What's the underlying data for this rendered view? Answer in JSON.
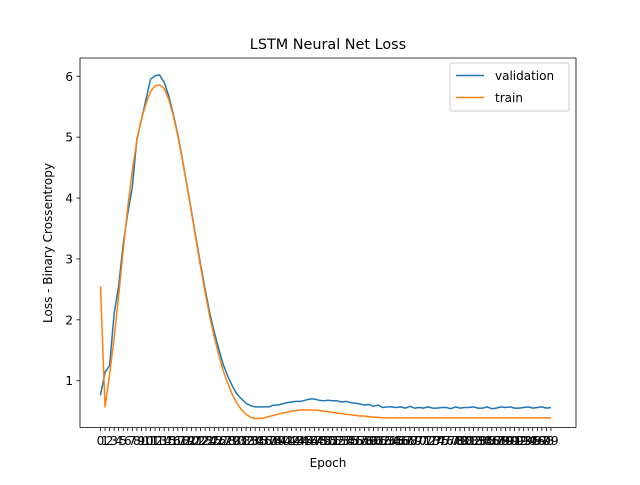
{
  "chart_data": {
    "type": "line",
    "title": "LSTM Neural Net Loss",
    "xlabel": "Epoch",
    "ylabel": "Loss - Binary Crossentropy",
    "ylim": [
      0.23,
      6.3
    ],
    "xlim": [
      -4.5,
      104.5
    ],
    "yticks": [
      1,
      2,
      3,
      4,
      5,
      6
    ],
    "x_tick_labels_visible": [
      "0",
      "1",
      "2",
      "3",
      "4",
      "5",
      "6",
      "7",
      "8",
      "9",
      "10",
      "11",
      "12",
      "13",
      "14",
      "15",
      "16",
      "17",
      "18",
      "19",
      "20",
      "21",
      "22",
      "23",
      "24",
      "25",
      "26",
      "27",
      "28",
      "29",
      "30",
      "31",
      "32",
      "33",
      "34",
      "35",
      "36",
      "37",
      "38",
      "39",
      "40",
      "41",
      "42",
      "43",
      "44",
      "45",
      "46",
      "47",
      "48",
      "49",
      "50",
      "51",
      "52",
      "53",
      "54",
      "55",
      "56",
      "57",
      "58",
      "59",
      "60",
      "61",
      "62",
      "63",
      "64",
      "65",
      "66",
      "67",
      "68",
      "69",
      "70",
      "71",
      "72",
      "73",
      "74",
      "75",
      "76",
      "77",
      "78",
      "79",
      "80",
      "81",
      "82",
      "83",
      "84",
      "85",
      "86",
      "87",
      "88",
      "89",
      "90",
      "91",
      "92",
      "93",
      "94",
      "95",
      "96",
      "97",
      "98",
      "99"
    ],
    "grid": false,
    "legend_position": "top-right",
    "series": [
      {
        "name": "validation",
        "color": "#1f77b4",
        "x": [
          0,
          1,
          2,
          3,
          4,
          5,
          6,
          7,
          8,
          9,
          10,
          11,
          12,
          13,
          14,
          15,
          16,
          17,
          18,
          19,
          20,
          21,
          22,
          23,
          24,
          25,
          26,
          27,
          28,
          29,
          30,
          31,
          32,
          33,
          34,
          35,
          36,
          37,
          38,
          39,
          40,
          41,
          42,
          43,
          44,
          45,
          46,
          47,
          48,
          49,
          50,
          51,
          52,
          53,
          54,
          55,
          56,
          57,
          58,
          59,
          60,
          61,
          62,
          63,
          64,
          65,
          66,
          67,
          68,
          69,
          70,
          71,
          72,
          73,
          74,
          75,
          76,
          77,
          78,
          79,
          80,
          81,
          82,
          83,
          84,
          85,
          86,
          87,
          88,
          89,
          90,
          91,
          92,
          93,
          94,
          95,
          96,
          97,
          98,
          99
        ],
        "values": [
          0.76,
          1.14,
          1.25,
          2.1,
          2.56,
          3.25,
          3.75,
          4.18,
          4.97,
          5.28,
          5.62,
          5.95,
          6.01,
          6.02,
          5.9,
          5.68,
          5.38,
          5.04,
          4.64,
          4.21,
          3.78,
          3.34,
          2.91,
          2.5,
          2.12,
          1.8,
          1.52,
          1.26,
          1.07,
          0.91,
          0.78,
          0.7,
          0.63,
          0.59,
          0.57,
          0.57,
          0.57,
          0.57,
          0.6,
          0.6,
          0.62,
          0.64,
          0.65,
          0.66,
          0.66,
          0.68,
          0.7,
          0.7,
          0.68,
          0.67,
          0.68,
          0.67,
          0.67,
          0.65,
          0.66,
          0.64,
          0.63,
          0.62,
          0.6,
          0.61,
          0.58,
          0.6,
          0.56,
          0.57,
          0.57,
          0.56,
          0.57,
          0.55,
          0.58,
          0.55,
          0.56,
          0.55,
          0.57,
          0.55,
          0.55,
          0.56,
          0.56,
          0.54,
          0.57,
          0.55,
          0.56,
          0.56,
          0.57,
          0.55,
          0.55,
          0.57,
          0.54,
          0.55,
          0.57,
          0.56,
          0.57,
          0.55,
          0.55,
          0.56,
          0.57,
          0.55,
          0.56,
          0.57,
          0.55,
          0.56
        ]
      },
      {
        "name": "train",
        "color": "#ff7f0e",
        "x": [
          0,
          1,
          2,
          3,
          4,
          5,
          6,
          7,
          8,
          9,
          10,
          11,
          12,
          13,
          14,
          15,
          16,
          17,
          18,
          19,
          20,
          21,
          22,
          23,
          24,
          25,
          26,
          27,
          28,
          29,
          30,
          31,
          32,
          33,
          34,
          35,
          36,
          37,
          38,
          39,
          40,
          41,
          42,
          43,
          44,
          45,
          46,
          47,
          48,
          49,
          50,
          51,
          52,
          53,
          54,
          55,
          56,
          57,
          58,
          59,
          60,
          61,
          62,
          63,
          64,
          65,
          66,
          67,
          68,
          69,
          70,
          71,
          72,
          73,
          74,
          75,
          76,
          77,
          78,
          79,
          80,
          81,
          82,
          83,
          84,
          85,
          86,
          87,
          88,
          89,
          90,
          91,
          92,
          93,
          94,
          95,
          96,
          97,
          98,
          99
        ],
        "values": [
          2.55,
          0.57,
          1.1,
          1.7,
          2.4,
          3.15,
          3.85,
          4.45,
          4.95,
          5.3,
          5.55,
          5.75,
          5.84,
          5.86,
          5.8,
          5.62,
          5.35,
          5.02,
          4.62,
          4.2,
          3.76,
          3.31,
          2.87,
          2.45,
          2.06,
          1.72,
          1.42,
          1.16,
          0.95,
          0.77,
          0.63,
          0.52,
          0.45,
          0.4,
          0.38,
          0.38,
          0.39,
          0.41,
          0.43,
          0.45,
          0.47,
          0.48,
          0.5,
          0.51,
          0.52,
          0.52,
          0.52,
          0.52,
          0.51,
          0.5,
          0.49,
          0.48,
          0.47,
          0.46,
          0.45,
          0.44,
          0.43,
          0.42,
          0.42,
          0.41,
          0.4,
          0.4,
          0.39,
          0.39,
          0.39,
          0.39,
          0.39,
          0.39,
          0.39,
          0.39,
          0.39,
          0.39,
          0.39,
          0.39,
          0.39,
          0.39,
          0.39,
          0.39,
          0.39,
          0.39,
          0.39,
          0.39,
          0.39,
          0.39,
          0.39,
          0.39,
          0.39,
          0.39,
          0.39,
          0.39,
          0.39,
          0.39,
          0.39,
          0.39,
          0.39,
          0.39,
          0.39,
          0.39,
          0.39,
          0.39
        ]
      }
    ]
  }
}
